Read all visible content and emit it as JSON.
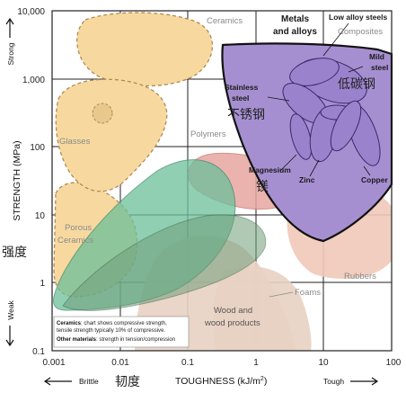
{
  "chart_data": {
    "type": "scatter",
    "x_scale": "log",
    "y_scale": "log",
    "xlim": [
      0.001,
      100
    ],
    "ylim": [
      0.1,
      10000
    ],
    "grid": true,
    "x_ticks": [
      "0.001",
      "0.01",
      "0.1",
      "1",
      "10",
      "100"
    ],
    "y_ticks": [
      "10,000",
      "1,000",
      "100",
      "10",
      "1",
      "0.1"
    ],
    "xlabel": "TOUGHNESS (kJ/m",
    "xlabel_sup": "2",
    "xlabel_close": ")",
    "ylabel": "STRENGTH (MPa)",
    "x_low_label": "Brittle",
    "x_high_label": "Tough",
    "y_low_label": "Weak",
    "y_high_label": "Strong",
    "x_label_zh": "韧度",
    "y_label_zh": "强度",
    "materials": {
      "ceramics": "Ceramics",
      "glasses": "Glasses",
      "porous_ceramics": [
        "Porous",
        "Ceramics"
      ],
      "polymers": "Polymers",
      "rubbers": "Rubbers",
      "foams": "Foams",
      "wood": [
        "Wood and",
        "wood products"
      ],
      "composites": "Composites",
      "metals": [
        "Metals",
        "and alloys"
      ],
      "low_alloy_steels": "Low alloy steels",
      "mild_steel": [
        "Mild",
        "steel"
      ],
      "mild_steel_zh": "低碳钢",
      "stainless_steel": [
        "Stainless",
        "steel"
      ],
      "stainless_steel_zh": "不锈钢",
      "magnesium": "Magnesium",
      "magnesium_zh": "镁",
      "zinc": "Zinc",
      "copper": "Copper"
    },
    "regions": [
      {
        "name": "Ceramics",
        "x": [
          0.002,
          0.06
        ],
        "y": [
          600,
          10000
        ],
        "color": "#f7d9a0"
      },
      {
        "name": "Glasses",
        "x": [
          0.002,
          0.1
        ],
        "y": [
          10,
          1500
        ],
        "color": "#f7d9a0"
      },
      {
        "name": "Porous Ceramics",
        "x": [
          0.001,
          0.05
        ],
        "y": [
          0.8,
          100
        ],
        "color": "#f7d9a0"
      },
      {
        "name": "Polymers",
        "x": [
          0.001,
          10
        ],
        "y": [
          0.8,
          60
        ],
        "color": "#6dbf9a"
      },
      {
        "name": "Rubbers",
        "x": [
          2,
          100
        ],
        "y": [
          1,
          30
        ],
        "color": "#efc9b8"
      },
      {
        "name": "Foams",
        "x": [
          0.01,
          10
        ],
        "y": [
          0.1,
          3
        ],
        "color": "#e8d2c2"
      },
      {
        "name": "Wood and wood products",
        "x": [
          0.01,
          30
        ],
        "y": [
          0.1,
          10
        ],
        "color": "#e8d2c2"
      },
      {
        "name": "Metals and alloys",
        "x": [
          1,
          100
        ],
        "y": [
          6,
          2000
        ],
        "color": "#a68fd1"
      }
    ],
    "note": {
      "line1_bold": "Ceramics",
      "line1": ": chart shows compressive strength,",
      "line2": "tensile strength typically 10% of compressive.",
      "line3_bold": "Other materials",
      "line3": ": strength in tension/compression"
    }
  }
}
